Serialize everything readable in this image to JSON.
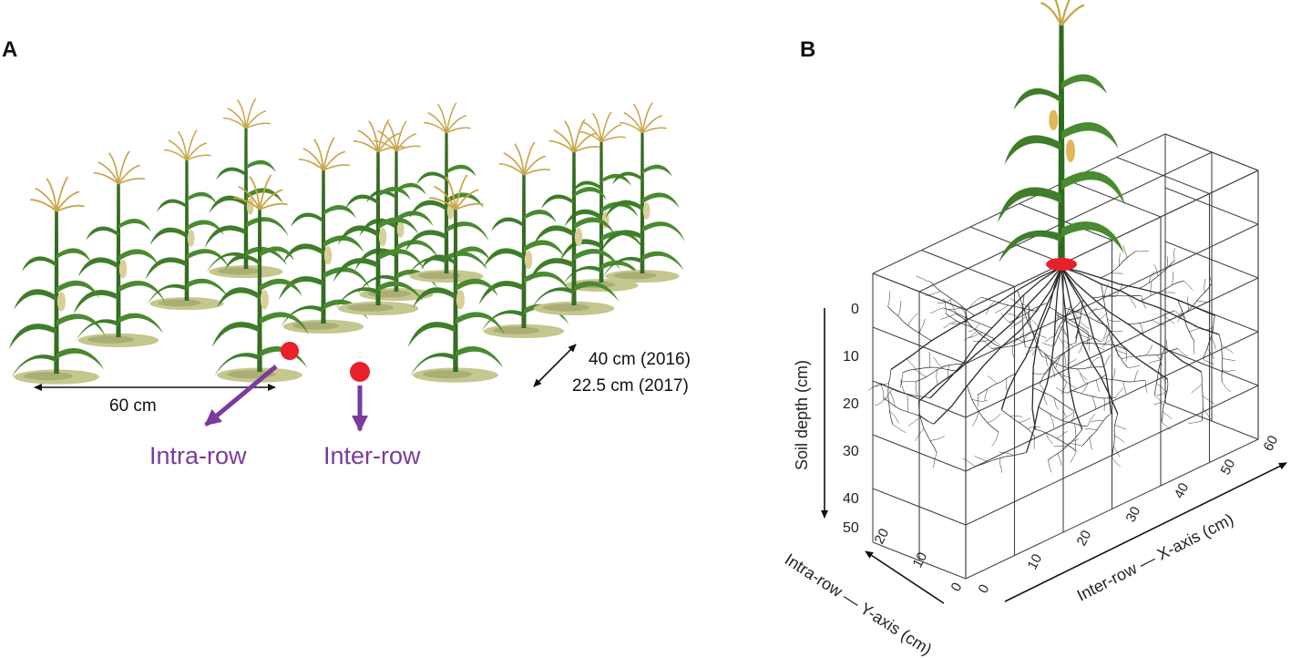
{
  "panels": {
    "a": {
      "label": "A"
    },
    "b": {
      "label": "B"
    }
  },
  "panel_a": {
    "row_spacing": "60 cm",
    "plant_spacing_2016": "40 cm (2016)",
    "plant_spacing_2017": "22.5 cm (2017)",
    "intra_row_label": "Intra-row",
    "inter_row_label": "Inter-row"
  },
  "panel_b": {
    "depth_axis_title": "Soil depth (cm)",
    "depth_ticks": [
      "0",
      "10",
      "20",
      "30",
      "40",
      "50"
    ],
    "x_axis_title": "Inter-row — X-axis (cm)",
    "x_ticks": [
      "0",
      "10",
      "20",
      "30",
      "40",
      "50",
      "60"
    ],
    "y_axis_title": "Intra-row — Y-axis (cm)",
    "y_ticks": [
      "0",
      "10",
      "20"
    ]
  },
  "colors": {
    "purple": "#7b3a9e",
    "red": "#e8202a",
    "leaf": "#3f7d2a",
    "tassel": "#c9a54a",
    "ground": "#bfc28a",
    "grid": "#444444",
    "root": "#2a2a2a"
  }
}
